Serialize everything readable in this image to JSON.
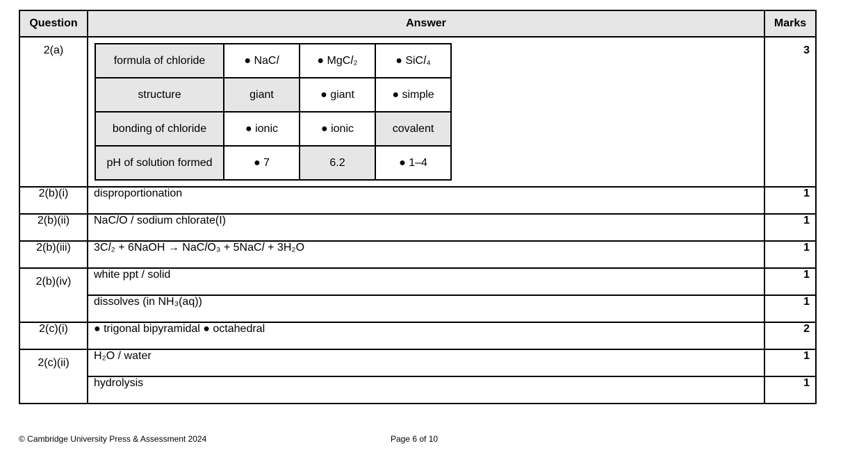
{
  "header": {
    "question": "Question",
    "answer": "Answer",
    "marks": "Marks"
  },
  "q2a": {
    "question": "2(a)",
    "marks": "3",
    "rows": [
      {
        "label": "formula of chloride",
        "cells": [
          "● NaC𝑙",
          "● MgC𝑙₂",
          "● SiC𝑙₄"
        ],
        "shaded": [
          false,
          false,
          false
        ]
      },
      {
        "label": "structure",
        "cells": [
          "giant",
          "● giant",
          "● simple"
        ],
        "shaded": [
          true,
          false,
          false
        ]
      },
      {
        "label": "bonding of chloride",
        "cells": [
          "● ionic",
          "● ionic",
          "covalent"
        ],
        "shaded": [
          false,
          false,
          true
        ]
      },
      {
        "label": "pH of solution formed",
        "cells": [
          "● 7",
          "6.2",
          "● 1–4"
        ],
        "shaded": [
          false,
          true,
          false
        ]
      }
    ]
  },
  "rows": [
    {
      "question": "2(b)(i)",
      "answer": "disproportionation",
      "marks": "1"
    },
    {
      "question": "2(b)(ii)",
      "answer": "NaC𝑙O / sodium chlorate(I)",
      "marks": "1"
    },
    {
      "question": "2(b)(iii)",
      "answer": "3C𝑙₂ + 6NaOH → NaC𝑙O₃ + 5NaC𝑙 + 3H₂O",
      "marks": "1"
    },
    {
      "question": "2(b)(iv)",
      "answer": "white ppt / solid",
      "marks": "1"
    },
    {
      "question": "",
      "answer": "dissolves (in NH₃(aq))",
      "marks": "1"
    },
    {
      "question": "2(c)(i)",
      "answer": "● trigonal bipyramidal ● octahedral",
      "marks": "2"
    },
    {
      "question": "2(c)(ii)",
      "answer": "H₂O / water",
      "marks": "1"
    },
    {
      "question": "",
      "answer": "hydrolysis",
      "marks": "1"
    }
  ],
  "footer": {
    "copyright": "© Cambridge University Press & Assessment 2024",
    "page": "Page 6 of 10"
  }
}
